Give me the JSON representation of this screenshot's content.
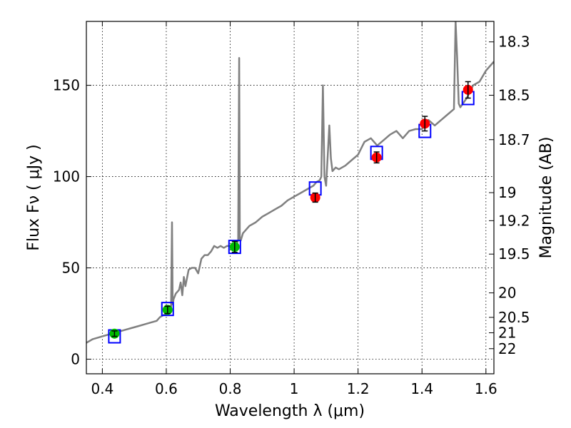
{
  "chart_data": {
    "type": "scatter",
    "xlabel": "Wavelength  λ (μm)",
    "ylabel": "Flux  Fν  ( μJy )",
    "y2label": "Magnitude (AB)",
    "xlim": [
      0.35,
      1.625
    ],
    "ylim": [
      -8,
      185
    ],
    "grid": true,
    "x_ticks": [
      {
        "value": 0.4,
        "label": "0.4"
      },
      {
        "value": 0.6,
        "label": "0.6"
      },
      {
        "value": 0.8,
        "label": "0.8"
      },
      {
        "value": 1.0,
        "label": "1"
      },
      {
        "value": 1.2,
        "label": "1.2"
      },
      {
        "value": 1.4,
        "label": "1.4"
      },
      {
        "value": 1.6,
        "label": "1.6"
      }
    ],
    "y_ticks": [
      {
        "value": 0,
        "label": "0"
      },
      {
        "value": 50,
        "label": "50"
      },
      {
        "value": 100,
        "label": "100"
      },
      {
        "value": 150,
        "label": "150"
      }
    ],
    "y2_ticks": [
      {
        "value": 18.3,
        "label": "18.3"
      },
      {
        "value": 18.5,
        "label": "18.5"
      },
      {
        "value": 18.7,
        "label": "18.7"
      },
      {
        "value": 19.0,
        "label": "19"
      },
      {
        "value": 19.2,
        "label": "19.2"
      },
      {
        "value": 19.5,
        "label": "19.5"
      },
      {
        "value": 20.0,
        "label": "20"
      },
      {
        "value": 20.5,
        "label": "20.5"
      },
      {
        "value": 21.0,
        "label": "21"
      },
      {
        "value": 22.0,
        "label": "22"
      }
    ],
    "series": [
      {
        "kind": "line",
        "color": "#808080",
        "x": [
          0.35,
          0.37,
          0.39,
          0.41,
          0.43,
          0.45,
          0.47,
          0.49,
          0.51,
          0.53,
          0.55,
          0.57,
          0.58,
          0.59,
          0.6,
          0.61,
          0.615,
          0.618,
          0.62,
          0.623,
          0.63,
          0.64,
          0.645,
          0.65,
          0.655,
          0.66,
          0.67,
          0.68,
          0.69,
          0.7,
          0.71,
          0.72,
          0.73,
          0.74,
          0.75,
          0.76,
          0.77,
          0.78,
          0.79,
          0.8,
          0.81,
          0.82,
          0.825,
          0.828,
          0.83,
          0.833,
          0.84,
          0.85,
          0.86,
          0.88,
          0.9,
          0.92,
          0.94,
          0.96,
          0.98,
          1.0,
          1.02,
          1.04,
          1.06,
          1.07,
          1.08,
          1.085,
          1.09,
          1.095,
          1.1,
          1.11,
          1.115,
          1.12,
          1.13,
          1.14,
          1.16,
          1.18,
          1.2,
          1.22,
          1.24,
          1.26,
          1.28,
          1.3,
          1.32,
          1.34,
          1.36,
          1.38,
          1.4,
          1.42,
          1.44,
          1.46,
          1.48,
          1.5,
          1.505,
          1.51,
          1.515,
          1.52,
          1.54,
          1.56,
          1.58,
          1.6,
          1.625
        ],
        "y": [
          9,
          11,
          12,
          13,
          14,
          15,
          16,
          17,
          18,
          19,
          20,
          21,
          23,
          24,
          25,
          26,
          28,
          75,
          30,
          33,
          36,
          38,
          42,
          35,
          45,
          40,
          49,
          50,
          50,
          47,
          55,
          57,
          57,
          59,
          62,
          61,
          62,
          61,
          62,
          62,
          63,
          63,
          65,
          165,
          66,
          65,
          69,
          71,
          73,
          75,
          78,
          80,
          82,
          84,
          87,
          89,
          91,
          93,
          95,
          97,
          98,
          100,
          150,
          100,
          95,
          128,
          110,
          103,
          105,
          104,
          106,
          109,
          112,
          119,
          121,
          117,
          120,
          123,
          125,
          121,
          125,
          126,
          126,
          131,
          128,
          131,
          134,
          137,
          185,
          165,
          140,
          138,
          143,
          150,
          152,
          158,
          163
        ]
      },
      {
        "kind": "open-square",
        "color": "#0000ff",
        "x": [
          0.438,
          0.604,
          0.814,
          1.066,
          1.258,
          1.409,
          1.544
        ],
        "y": [
          12.5,
          27.5,
          61.5,
          93.5,
          113,
          125,
          143
        ]
      },
      {
        "kind": "point-with-error",
        "color": "#00bb00",
        "x": [
          0.438,
          0.604,
          0.814
        ],
        "y": [
          14,
          27,
          61.5
        ],
        "err": [
          1.5,
          2,
          3
        ]
      },
      {
        "kind": "point-with-error",
        "color": "#ff0000",
        "x": [
          1.066,
          1.258,
          1.409,
          1.544
        ],
        "y": [
          88.5,
          110.5,
          129,
          147.5
        ],
        "err": [
          2.5,
          3,
          4,
          4.5
        ]
      }
    ]
  }
}
